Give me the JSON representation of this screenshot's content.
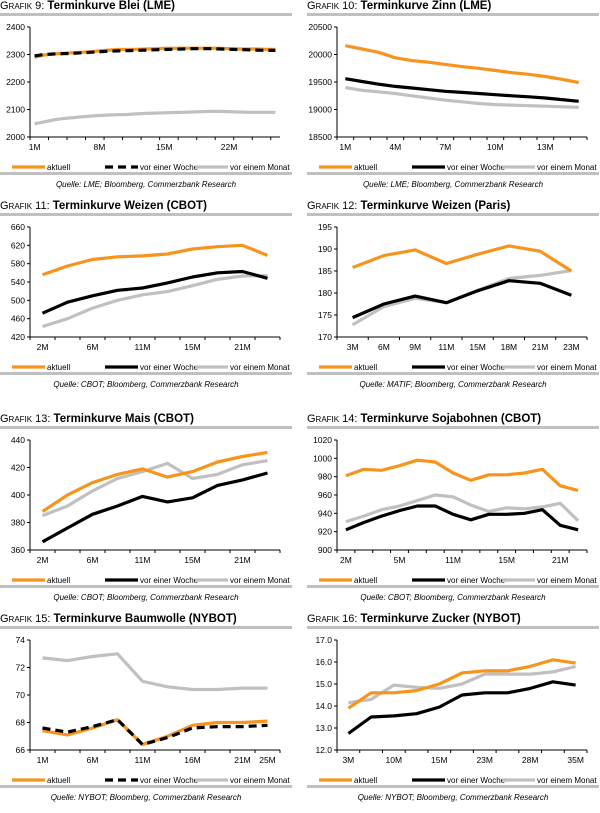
{
  "legend_labels": [
    "aktuell",
    "vor einer Woche",
    "vor einem Monat"
  ],
  "series_colors": {
    "aktuell": "#f7941d",
    "vor einer Woche": "#000000",
    "vor einem Monat": "#c0c0c0"
  },
  "panels": [
    {
      "grafik": "Grafik 9:",
      "title": "Terminkurve Blei (LME)",
      "source": "Quelle: LME; Bloomberg, Commerzbank Research",
      "woche_dashed": true
    },
    {
      "grafik": "Grafik 10:",
      "title": "Terminkurve Zinn (LME)",
      "source": "Quelle: LME; Bloomberg, Commerzbank Research",
      "woche_dashed": false
    },
    {
      "grafik": "Grafik 11:",
      "title": "Terminkurve Weizen (CBOT)",
      "source": "Quelle: CBOT; Bloomberg, Commerzbank Research",
      "woche_dashed": false
    },
    {
      "grafik": "Grafik 12:",
      "title": "Terminkurve Weizen (Paris)",
      "source": "Quelle: MATIF; Bloomberg, Commerzbank Research",
      "woche_dashed": false
    },
    {
      "grafik": "Grafik 13:",
      "title": "Terminkurve Mais (CBOT)",
      "source": "Quelle: CBOT; Bloomberg, Commerzbank Research",
      "woche_dashed": false
    },
    {
      "grafik": "Grafik 14:",
      "title": "Terminkurve Sojabohnen (CBOT)",
      "source": "Quelle: CBOT; Bloomberg, Commerzbank Research",
      "woche_dashed": false
    },
    {
      "grafik": "Grafik 15:",
      "title": "Terminkurve Baumwolle (NYBOT)",
      "source": "Quelle: NYBOT; Bloomberg, Commerzbank Research",
      "woche_dashed": true
    },
    {
      "grafik": "Grafik 16:",
      "title": "Terminkurve Zucker (NYBOT)",
      "source": "Quelle: NYBOT; Bloomberg, Commerzbank Research",
      "woche_dashed": false
    }
  ],
  "chart_data": [
    {
      "type": "line",
      "title": "Terminkurve Blei (LME)",
      "xlabel": "",
      "ylabel": "",
      "ylim": [
        2000,
        2400
      ],
      "yticks": [
        2000,
        2100,
        2200,
        2300,
        2400
      ],
      "n_points": 27,
      "xtick_labels": [
        {
          "index": 0,
          "label": "1M"
        },
        {
          "index": 7,
          "label": "8M"
        },
        {
          "index": 14,
          "label": "15M"
        },
        {
          "index": 21,
          "label": "22M"
        }
      ],
      "grid": false,
      "legend": "bottom",
      "series": [
        {
          "name": "aktuell",
          "values": [
            2290,
            2298,
            2302,
            2304,
            2306,
            2308,
            2310,
            2313,
            2316,
            2318,
            2318,
            2319,
            2320,
            2321,
            2322,
            2322,
            2323,
            2323,
            2323,
            2323,
            2322,
            2321,
            2320,
            2320,
            2320,
            2319,
            2319
          ]
        },
        {
          "name": "vor einer Woche",
          "values": [
            2295,
            2300,
            2302,
            2303,
            2304,
            2306,
            2308,
            2310,
            2312,
            2313,
            2314,
            2315,
            2316,
            2317,
            2318,
            2319,
            2320,
            2321,
            2321,
            2321,
            2320,
            2319,
            2318,
            2317,
            2316,
            2315,
            2315
          ]
        },
        {
          "name": "vor einem Monat",
          "values": [
            2048,
            2055,
            2062,
            2067,
            2070,
            2073,
            2076,
            2078,
            2080,
            2081,
            2082,
            2084,
            2086,
            2087,
            2088,
            2089,
            2090,
            2091,
            2092,
            2093,
            2093,
            2092,
            2091,
            2090,
            2090,
            2090,
            2090
          ]
        }
      ]
    },
    {
      "type": "line",
      "title": "Terminkurve Zinn (LME)",
      "xlabel": "",
      "ylabel": "",
      "ylim": [
        18500,
        20500
      ],
      "yticks": [
        18500,
        19000,
        19500,
        20000,
        20500
      ],
      "n_points": 15,
      "xtick_labels": [
        {
          "index": 0,
          "label": "1M"
        },
        {
          "index": 3,
          "label": "4M"
        },
        {
          "index": 6,
          "label": "7M"
        },
        {
          "index": 9,
          "label": "10M"
        },
        {
          "index": 12,
          "label": "13M"
        }
      ],
      "grid": false,
      "legend": "bottom",
      "series": [
        {
          "name": "aktuell",
          "values": [
            20160,
            20100,
            20040,
            19940,
            19890,
            19860,
            19820,
            19780,
            19750,
            19710,
            19670,
            19640,
            19600,
            19550,
            19490
          ]
        },
        {
          "name": "vor einer Woche",
          "values": [
            19560,
            19510,
            19460,
            19420,
            19390,
            19360,
            19330,
            19310,
            19290,
            19270,
            19250,
            19230,
            19210,
            19180,
            19150
          ]
        },
        {
          "name": "vor einem Monat",
          "values": [
            19400,
            19350,
            19320,
            19290,
            19250,
            19210,
            19170,
            19140,
            19110,
            19090,
            19080,
            19070,
            19060,
            19050,
            19040
          ]
        }
      ]
    },
    {
      "type": "line",
      "title": "Terminkurve Weizen (CBOT)",
      "xlabel": "",
      "ylabel": "",
      "ylim": [
        420,
        660
      ],
      "yticks": [
        420,
        460,
        500,
        540,
        580,
        620,
        660
      ],
      "n_points": 10,
      "xtick_labels": [
        {
          "index": 0,
          "label": "2M"
        },
        {
          "index": 2,
          "label": "6M"
        },
        {
          "index": 4,
          "label": "11M"
        },
        {
          "index": 6,
          "label": "15M"
        },
        {
          "index": 8,
          "label": "21M"
        }
      ],
      "grid": false,
      "legend": "bottom",
      "series": [
        {
          "name": "aktuell",
          "values": [
            556,
            575,
            589,
            595,
            597,
            601,
            612,
            617,
            620,
            598
          ]
        },
        {
          "name": "vor einer Woche",
          "values": [
            472,
            496,
            510,
            522,
            527,
            538,
            551,
            560,
            563,
            548
          ]
        },
        {
          "name": "vor einem Monat",
          "values": [
            443,
            460,
            483,
            500,
            512,
            519,
            532,
            546,
            553,
            554
          ]
        }
      ]
    },
    {
      "type": "line",
      "title": "Terminkurve Weizen (Paris)",
      "xlabel": "",
      "ylabel": "",
      "ylim": [
        170,
        195
      ],
      "yticks": [
        170,
        175,
        180,
        185,
        190,
        195
      ],
      "n_points": 8,
      "xtick_labels": [
        {
          "index": 0,
          "label": "3M"
        },
        {
          "index": 1,
          "label": "6M"
        },
        {
          "index": 2,
          "label": "9M"
        },
        {
          "index": 3,
          "label": "11M"
        },
        {
          "index": 4,
          "label": "15M"
        },
        {
          "index": 5,
          "label": "18M"
        },
        {
          "index": 6,
          "label": "21M"
        },
        {
          "index": 7,
          "label": "23M"
        }
      ],
      "grid": false,
      "legend": "bottom",
      "series": [
        {
          "name": "aktuell",
          "values": [
            185.8,
            188.5,
            189.8,
            186.7,
            188.8,
            190.7,
            189.5,
            185.0
          ]
        },
        {
          "name": "vor einer Woche",
          "values": [
            174.4,
            177.5,
            179.3,
            177.8,
            180.5,
            182.8,
            182.2,
            179.5
          ]
        },
        {
          "name": "vor einem Monat",
          "values": [
            172.8,
            176.9,
            178.8,
            177.8,
            180.6,
            183.3,
            184.0,
            185.1
          ]
        }
      ]
    },
    {
      "type": "line",
      "title": "Terminkurve Mais (CBOT)",
      "xlabel": "",
      "ylabel": "",
      "ylim": [
        360,
        440
      ],
      "yticks": [
        360,
        380,
        400,
        420,
        440
      ],
      "n_points": 10,
      "xtick_labels": [
        {
          "index": 0,
          "label": "2M"
        },
        {
          "index": 2,
          "label": "6M"
        },
        {
          "index": 4,
          "label": "11M"
        },
        {
          "index": 6,
          "label": "15M"
        },
        {
          "index": 8,
          "label": "21M"
        }
      ],
      "grid": false,
      "legend": "bottom",
      "series": [
        {
          "name": "aktuell",
          "values": [
            388,
            400,
            409,
            415,
            419,
            413,
            417,
            424,
            428,
            431
          ]
        },
        {
          "name": "vor einer Woche",
          "values": [
            366,
            376,
            386,
            392,
            399,
            395,
            398,
            407,
            411,
            416
          ]
        },
        {
          "name": "vor einem Monat",
          "values": [
            385,
            392,
            403,
            412,
            417,
            423,
            412,
            415,
            422,
            425
          ]
        }
      ]
    },
    {
      "type": "line",
      "title": "Terminkurve Sojabohnen (CBOT)",
      "xlabel": "",
      "ylabel": "",
      "ylim": [
        900,
        1020
      ],
      "yticks": [
        900,
        920,
        940,
        960,
        980,
        1000,
        1020
      ],
      "n_points": 14,
      "xtick_labels": [
        {
          "index": 0,
          "label": "2M"
        },
        {
          "index": 3,
          "label": "5M"
        },
        {
          "index": 6,
          "label": "11M"
        },
        {
          "index": 9,
          "label": "15M"
        },
        {
          "index": 12,
          "label": "21M"
        }
      ],
      "grid": false,
      "legend": "bottom",
      "series": [
        {
          "name": "aktuell",
          "values": [
            981,
            988,
            987,
            992,
            998,
            996,
            984,
            976,
            982,
            982,
            984,
            988,
            970,
            965
          ]
        },
        {
          "name": "vor einer Woche",
          "values": [
            922,
            930,
            937,
            943,
            948,
            948,
            939,
            933,
            939,
            939,
            940,
            944,
            927,
            922
          ]
        },
        {
          "name": "vor einem Monat",
          "values": [
            931,
            937,
            944,
            948,
            954,
            960,
            958,
            949,
            942,
            946,
            945,
            947,
            951,
            932
          ]
        }
      ]
    },
    {
      "type": "line",
      "title": "Terminkurve Baumwolle (NYBOT)",
      "xlabel": "",
      "ylabel": "",
      "ylim": [
        66,
        74
      ],
      "yticks": [
        66,
        68,
        70,
        72,
        74
      ],
      "n_points": 10,
      "xtick_labels": [
        {
          "index": 0,
          "label": "1M"
        },
        {
          "index": 2,
          "label": "6M"
        },
        {
          "index": 4,
          "label": "11M"
        },
        {
          "index": 6,
          "label": "16M"
        },
        {
          "index": 8,
          "label": "21M"
        },
        {
          "index": 9,
          "label": "25M"
        }
      ],
      "grid": false,
      "legend": "bottom",
      "series": [
        {
          "name": "aktuell",
          "values": [
            67.4,
            67.1,
            67.6,
            68.2,
            66.4,
            67.0,
            67.8,
            68.0,
            68.0,
            68.1
          ]
        },
        {
          "name": "vor einer Woche",
          "values": [
            67.6,
            67.3,
            67.7,
            68.2,
            66.4,
            66.9,
            67.6,
            67.7,
            67.7,
            67.8
          ]
        },
        {
          "name": "vor einem Monat",
          "values": [
            72.7,
            72.5,
            72.8,
            73.0,
            71.0,
            70.6,
            70.4,
            70.4,
            70.5,
            70.5
          ]
        }
      ]
    },
    {
      "type": "line",
      "title": "Terminkurve Zucker (NYBOT)",
      "xlabel": "",
      "ylabel": "",
      "ylim": [
        12.0,
        17.0
      ],
      "yticks": [
        "12.0",
        "13.0",
        "14.0",
        "15.0",
        "16.0",
        "17.0"
      ],
      "n_points": 11,
      "xtick_labels": [
        {
          "index": 0,
          "label": "3M"
        },
        {
          "index": 2,
          "label": "10M"
        },
        {
          "index": 4,
          "label": "15M"
        },
        {
          "index": 6,
          "label": "23M"
        },
        {
          "index": 8,
          "label": "28M"
        },
        {
          "index": 10,
          "label": "35M"
        }
      ],
      "grid": false,
      "legend": "bottom",
      "series": [
        {
          "name": "aktuell",
          "values": [
            13.9,
            14.6,
            14.6,
            14.7,
            15.0,
            15.5,
            15.6,
            15.6,
            15.8,
            16.1,
            15.95
          ]
        },
        {
          "name": "vor einer Woche",
          "values": [
            12.75,
            13.5,
            13.55,
            13.65,
            13.95,
            14.5,
            14.6,
            14.6,
            14.8,
            15.1,
            14.95
          ]
        },
        {
          "name": "vor einem Monat",
          "values": [
            14.15,
            14.3,
            14.95,
            14.85,
            14.8,
            15.0,
            15.45,
            15.45,
            15.45,
            15.55,
            15.8
          ]
        }
      ]
    }
  ]
}
